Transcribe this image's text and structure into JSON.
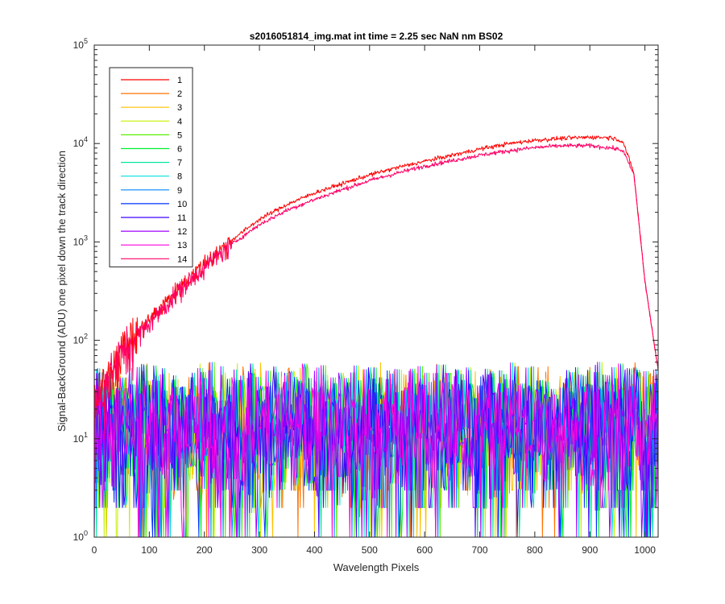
{
  "chart_data": {
    "type": "line",
    "title": "s2016051814_img.mat int time = 2.25 sec  NaN nm BS02",
    "xlabel": "Wavelength Pixels",
    "ylabel": "Signal-BackGround (ADU) one pixel down the track direction",
    "x_ticks": [
      "0",
      "100",
      "200",
      "300",
      "400",
      "500",
      "600",
      "700",
      "800",
      "900",
      "1000"
    ],
    "y_ticks": [
      {
        "base": "10",
        "exp": "0"
      },
      {
        "base": "10",
        "exp": "1"
      },
      {
        "base": "10",
        "exp": "2"
      },
      {
        "base": "10",
        "exp": "3"
      },
      {
        "base": "10",
        "exp": "4"
      },
      {
        "base": "10",
        "exp": "5"
      }
    ],
    "xlim": [
      0,
      1024
    ],
    "ylim": [
      1,
      100000
    ],
    "yscale": "log",
    "grid": false,
    "legend_placement": "top-left",
    "series": [
      {
        "name": "1",
        "color": "#ff0000",
        "x": [
          0,
          20,
          50,
          100,
          150,
          200,
          250,
          300,
          350,
          400,
          450,
          500,
          550,
          600,
          650,
          700,
          750,
          800,
          850,
          900,
          940,
          960,
          980,
          1000,
          1024
        ],
        "y": [
          20,
          40,
          80,
          160,
          320,
          600,
          1050,
          1700,
          2400,
          3150,
          3900,
          4800,
          5700,
          6600,
          7600,
          8800,
          9900,
          10800,
          11300,
          11600,
          11500,
          10500,
          5000,
          400,
          50
        ]
      },
      {
        "name": "2",
        "color": "#ff7300",
        "noise": true
      },
      {
        "name": "3",
        "color": "#ffc000",
        "noise": true
      },
      {
        "name": "4",
        "color": "#c4f000",
        "noise": true
      },
      {
        "name": "5",
        "color": "#55ef00",
        "noise": true
      },
      {
        "name": "6",
        "color": "#00ef30",
        "noise": true
      },
      {
        "name": "7",
        "color": "#00e6a0",
        "noise": true
      },
      {
        "name": "8",
        "color": "#00dede",
        "noise": true
      },
      {
        "name": "9",
        "color": "#0088ff",
        "noise": true
      },
      {
        "name": "10",
        "color": "#0033ff",
        "noise": true
      },
      {
        "name": "11",
        "color": "#4000ff",
        "noise": true
      },
      {
        "name": "12",
        "color": "#a000ff",
        "noise": true
      },
      {
        "name": "13",
        "color": "#ff00e0",
        "noise": true
      },
      {
        "name": "14",
        "color": "#ff0066",
        "x": [
          0,
          20,
          50,
          100,
          150,
          200,
          250,
          300,
          350,
          400,
          450,
          500,
          550,
          600,
          650,
          700,
          750,
          800,
          850,
          900,
          940,
          960,
          980,
          1000,
          1024
        ],
        "y": [
          20,
          38,
          75,
          150,
          300,
          560,
          950,
          1500,
          2100,
          2700,
          3400,
          4200,
          5000,
          5900,
          6700,
          7600,
          8400,
          9100,
          9500,
          9500,
          9000,
          8500,
          4800,
          400,
          50
        ]
      }
    ]
  }
}
